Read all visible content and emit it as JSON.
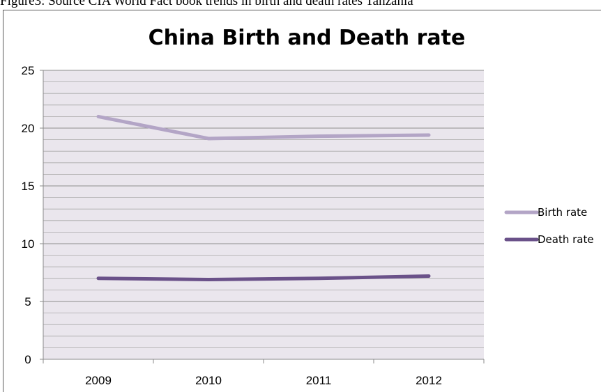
{
  "caption": "Figure3: Source CIA World Fact book trends in birth and death rates Tanzania",
  "chart_data": {
    "type": "line",
    "title": "China Birth and Death rate",
    "xlabel": "",
    "ylabel": "",
    "categories": [
      "2009",
      "2010",
      "2011",
      "2012"
    ],
    "ylim": [
      0,
      25
    ],
    "yticks": [
      "0",
      "5",
      "10",
      "15",
      "20",
      "25"
    ],
    "grid": true,
    "legend_position": "right",
    "series": [
      {
        "name": "Birth rate",
        "values": [
          21.0,
          19.1,
          19.3,
          19.4
        ],
        "color": "#b3a5c6"
      },
      {
        "name": "Death rate",
        "values": [
          7.0,
          6.9,
          7.0,
          7.2
        ],
        "color": "#6a5189"
      }
    ]
  }
}
